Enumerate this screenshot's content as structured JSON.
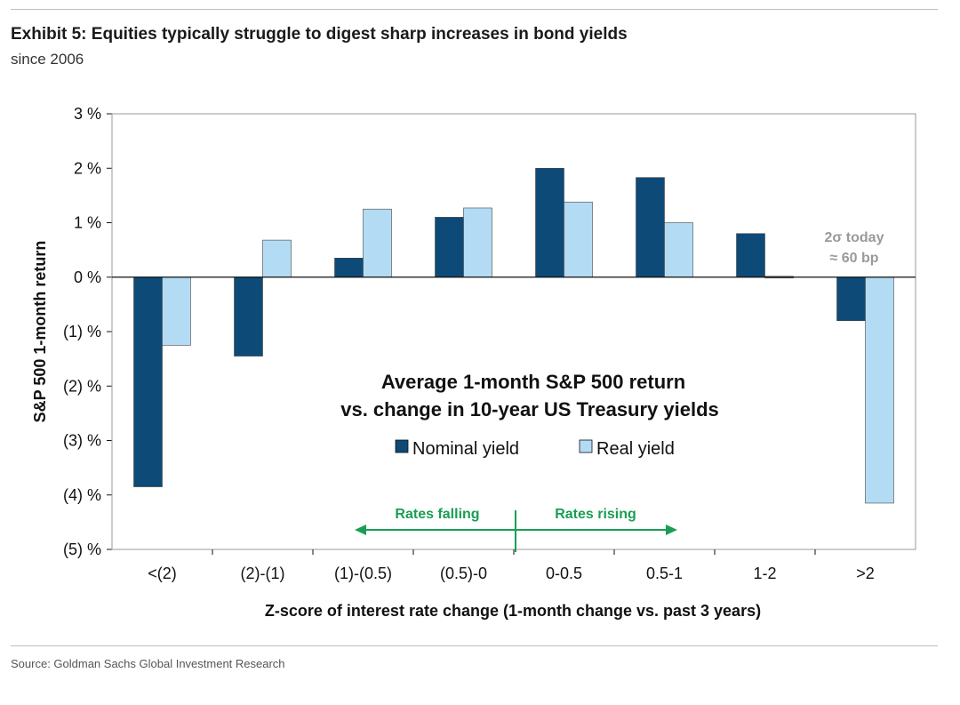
{
  "header": {
    "title": "Exhibit 5: Equities typically struggle to digest sharp increases in bond yields",
    "subtitle": "since 2006"
  },
  "footer": {
    "source": "Source: Goldman Sachs Global Investment Research"
  },
  "colors": {
    "nominal": "#0d4a77",
    "real": "#b3dcf4",
    "arrows": "#1a9e55",
    "note": "#9a9a9a"
  },
  "annotations": {
    "chart_title_line1": "Average 1-month S&P 500 return",
    "chart_title_line2": "vs. change in 10-year US Treasury yields",
    "rates_falling": "Rates falling",
    "rates_rising": "Rates rising",
    "note_line1": "2σ today",
    "note_line2": "≈ 60 bp"
  },
  "chart_data": {
    "type": "bar",
    "categories": [
      "<(2)",
      "(2)-(1)",
      "(1)-(0.5)",
      "(0.5)-0",
      "0-0.5",
      "0.5-1",
      "1-2",
      ">2"
    ],
    "series": [
      {
        "name": "Nominal yield",
        "values": [
          -3.85,
          -1.45,
          0.35,
          1.1,
          2.0,
          1.83,
          0.8,
          -0.8
        ]
      },
      {
        "name": "Real yield",
        "values": [
          -1.25,
          0.68,
          1.25,
          1.27,
          1.38,
          1.0,
          -0.02,
          -4.15
        ]
      }
    ],
    "ylabel": "S&P 500 1-month return",
    "xlabel": "Z-score of interest rate change (1-month change vs. past 3 years)",
    "ylim": [
      -5,
      3
    ],
    "yticks": [
      3,
      2,
      1,
      0,
      -1,
      -2,
      -3,
      -4,
      -5
    ],
    "ytick_labels": [
      "3 %",
      "2 %",
      "1 %",
      "0 %",
      "(1) %",
      "(2) %",
      "(3) %",
      "(4) %",
      "(5) %"
    ],
    "grid": false,
    "legend_position": "center"
  }
}
